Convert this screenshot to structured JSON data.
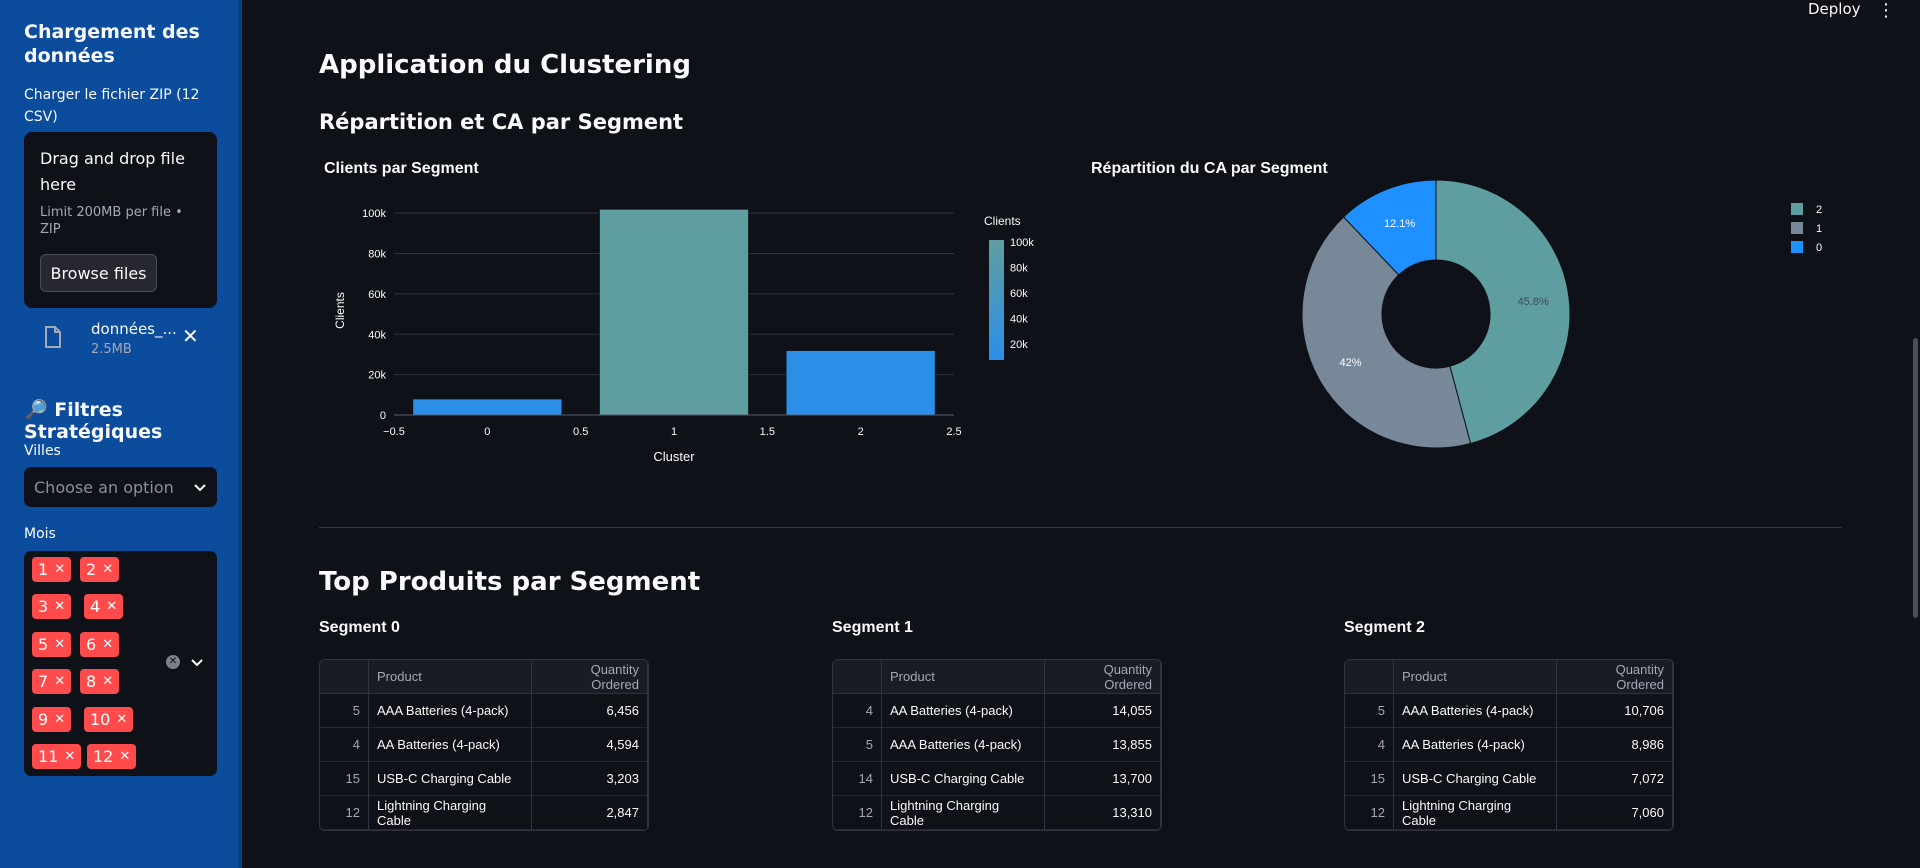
{
  "sidebar": {
    "title": "Chargement des données",
    "upload_label": "Charger le fichier ZIP (12 CSV)",
    "dropzone_title": "Drag and drop file here",
    "dropzone_limit": "Limit 200MB per file • ZIP",
    "browse_label": "Browse files",
    "file_name": "données_...",
    "file_size": "2.5MB",
    "filters_title": "🔎 Filtres Stratégiques",
    "villes_label": "Villes",
    "villes_placeholder": "Choose an option",
    "mois_label": "Mois",
    "mois_tags": [
      "1",
      "2",
      "3",
      "4",
      "5",
      "6",
      "7",
      "8",
      "9",
      "10",
      "11",
      "12"
    ]
  },
  "header": {
    "deploy_label": "Deploy",
    "menu_icon": "kebab-icon"
  },
  "main": {
    "title": "Application du Clustering",
    "subtitle": "Répartition et CA par Segment",
    "bar_title": "Clients par Segment",
    "pie_title": "Répartition du CA par Segment",
    "top_title": "Top Produits par Segment"
  },
  "chart_data": [
    {
      "type": "bar",
      "title": "Clients par Segment",
      "xlabel": "Cluster",
      "ylabel": "Clients",
      "x": [
        0,
        1,
        2
      ],
      "values": [
        8000,
        102000,
        32000
      ],
      "xlim": [
        -0.5,
        2.5
      ],
      "ylim": [
        0,
        102000
      ],
      "x_ticks": [
        "−0.5",
        "0",
        "0.5",
        "1",
        "1.5",
        "2",
        "2.5"
      ],
      "y_ticks": [
        "0",
        "20k",
        "40k",
        "60k",
        "80k",
        "100k"
      ],
      "colorbar_title": "Clients",
      "colorbar_ticks": [
        "100k",
        "80k",
        "60k",
        "40k",
        "20k"
      ],
      "colors": [
        "#2b8fe8",
        "#5f9ea0"
      ],
      "grid": true
    },
    {
      "type": "pie",
      "title": "Répartition du CA par Segment",
      "labels": [
        "2",
        "1",
        "0"
      ],
      "values": [
        45.8,
        42,
        12.1
      ],
      "value_labels": [
        "45.8%",
        "42%",
        "12.1%"
      ],
      "colors": [
        "#5f9ea0",
        "#778899",
        "#1e90ff"
      ],
      "hole": true,
      "legend": "top-right"
    }
  ],
  "segments": [
    {
      "title": "Segment 0",
      "columns": [
        "Product",
        "Quantity Ordered"
      ],
      "rows": [
        {
          "idx": "5",
          "product": "AAA Batteries (4-pack)",
          "qty": "6,456"
        },
        {
          "idx": "4",
          "product": "AA Batteries (4-pack)",
          "qty": "4,594"
        },
        {
          "idx": "15",
          "product": "USB-C Charging Cable",
          "qty": "3,203"
        },
        {
          "idx": "12",
          "product": "Lightning Charging Cable",
          "qty": "2,847"
        }
      ]
    },
    {
      "title": "Segment 1",
      "columns": [
        "Product",
        "Quantity Ordered"
      ],
      "rows": [
        {
          "idx": "4",
          "product": "AA Batteries (4-pack)",
          "qty": "14,055"
        },
        {
          "idx": "5",
          "product": "AAA Batteries (4-pack)",
          "qty": "13,855"
        },
        {
          "idx": "14",
          "product": "USB-C Charging Cable",
          "qty": "13,700"
        },
        {
          "idx": "12",
          "product": "Lightning Charging Cable",
          "qty": "13,310"
        }
      ]
    },
    {
      "title": "Segment 2",
      "columns": [
        "Product",
        "Quantity Ordered"
      ],
      "rows": [
        {
          "idx": "5",
          "product": "AAA Batteries (4-pack)",
          "qty": "10,706"
        },
        {
          "idx": "4",
          "product": "AA Batteries (4-pack)",
          "qty": "8,986"
        },
        {
          "idx": "15",
          "product": "USB-C Charging Cable",
          "qty": "7,072"
        },
        {
          "idx": "12",
          "product": "Lightning Charging Cable",
          "qty": "7,060"
        }
      ]
    }
  ]
}
